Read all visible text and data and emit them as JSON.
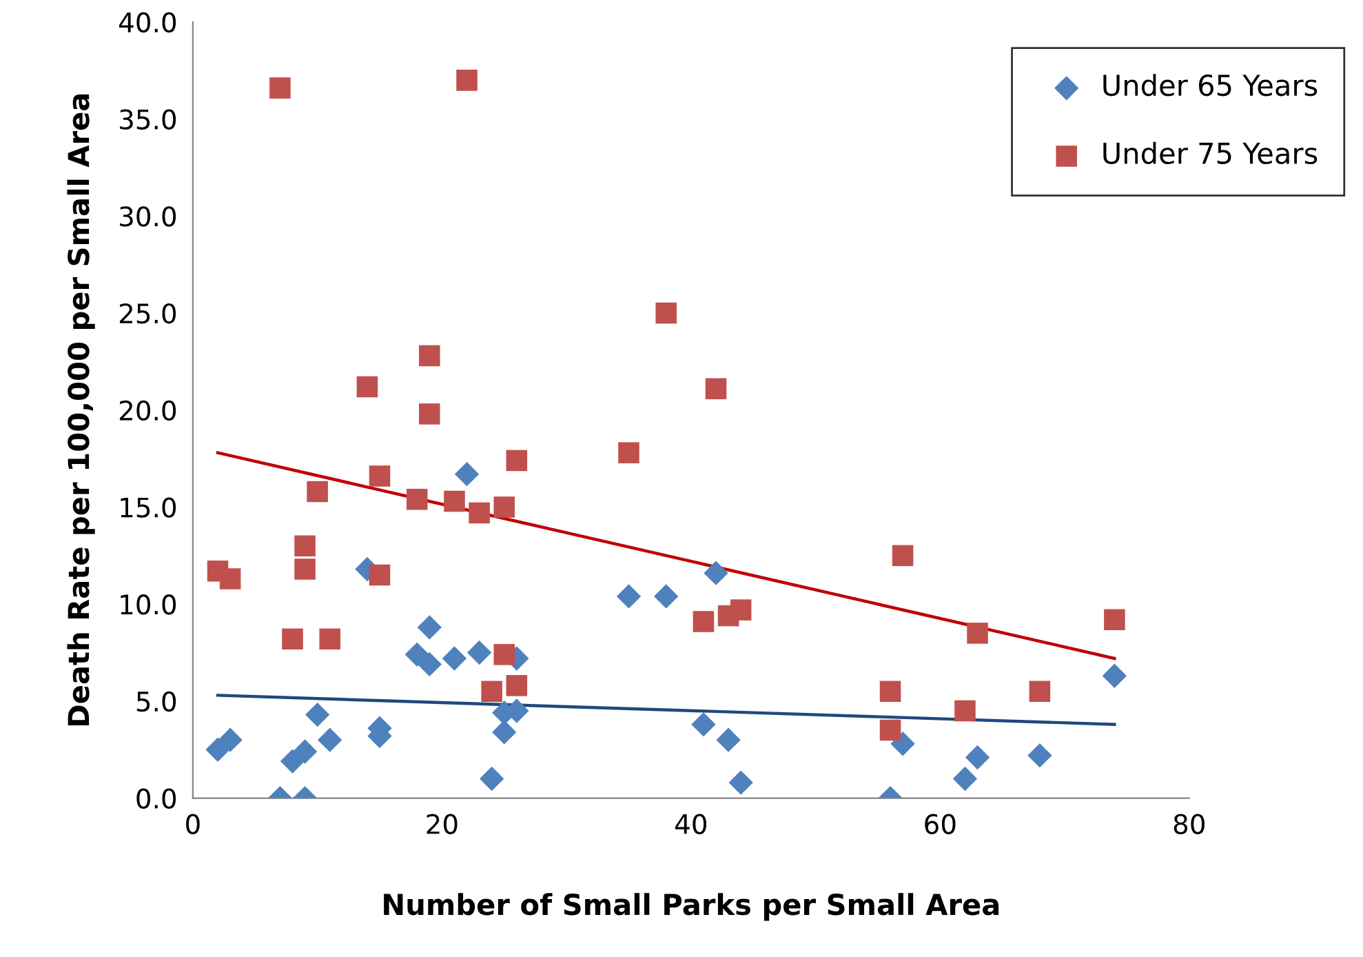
{
  "chart_data": {
    "type": "scatter",
    "xlabel": "Number of Small Parks per Small Area",
    "ylabel": "Death Rate per 100,000 per Small Area",
    "xlim": [
      0,
      80
    ],
    "xticks": [
      0,
      20,
      40,
      60,
      80
    ],
    "ylim": [
      0,
      40
    ],
    "yticks": [
      {
        "value": 0,
        "label": "0.0"
      },
      {
        "value": 5,
        "label": "5.0"
      },
      {
        "value": 10,
        "label": "10.0"
      },
      {
        "value": 15,
        "label": "15.0"
      },
      {
        "value": 20,
        "label": "20.0"
      },
      {
        "value": 25,
        "label": "25.0"
      },
      {
        "value": 30,
        "label": "30.0"
      },
      {
        "value": 35,
        "label": "35.0"
      },
      {
        "value": 40,
        "label": "40.0"
      }
    ],
    "grid": false,
    "legend": "top right",
    "series": [
      {
        "name": "Under 65 Years",
        "color": "#4f81bd",
        "marker": "diamond",
        "x": [
          2,
          3,
          7,
          8,
          9,
          9,
          10,
          11,
          14,
          15,
          15,
          18,
          19,
          19,
          21,
          22,
          23,
          24,
          25,
          25,
          26,
          26,
          35,
          38,
          41,
          42,
          43,
          44,
          56,
          57,
          62,
          63,
          68,
          74
        ],
        "values": [
          2.5,
          3.0,
          0,
          1.9,
          2.4,
          0,
          4.3,
          3.0,
          11.8,
          3.6,
          3.2,
          7.4,
          6.9,
          8.8,
          7.2,
          16.7,
          7.5,
          1.0,
          3.4,
          4.4,
          7.2,
          4.5,
          10.4,
          10.4,
          3.8,
          11.6,
          3.0,
          0.8,
          0,
          2.8,
          1.0,
          2.1,
          2.2,
          6.3
        ]
      },
      {
        "name": "Under 75 Years",
        "color": "#c0504d",
        "marker": "square",
        "x": [
          2,
          3,
          7,
          8,
          9,
          9,
          10,
          11,
          14,
          15,
          15,
          18,
          19,
          19,
          21,
          22,
          23,
          24,
          25,
          25,
          26,
          26,
          35,
          38,
          41,
          42,
          43,
          44,
          56,
          56,
          57,
          62,
          63,
          68,
          74
        ],
        "values": [
          11.7,
          11.3,
          36.6,
          8.2,
          13.0,
          11.8,
          15.8,
          8.2,
          21.2,
          16.6,
          11.5,
          15.4,
          22.8,
          19.8,
          15.3,
          37.0,
          14.7,
          5.5,
          15.0,
          7.4,
          17.4,
          5.8,
          17.8,
          25.0,
          9.1,
          21.1,
          9.4,
          9.7,
          5.5,
          3.5,
          12.5,
          4.5,
          8.5,
          5.5,
          9.2
        ]
      },
      {
        "type": "line",
        "color": "#1f497d",
        "x": [
          2,
          74
        ],
        "values": [
          5.3,
          3.8
        ]
      },
      {
        "type": "line",
        "color": "#c00000",
        "x": [
          2,
          74
        ],
        "values": [
          17.8,
          7.2
        ]
      }
    ]
  }
}
